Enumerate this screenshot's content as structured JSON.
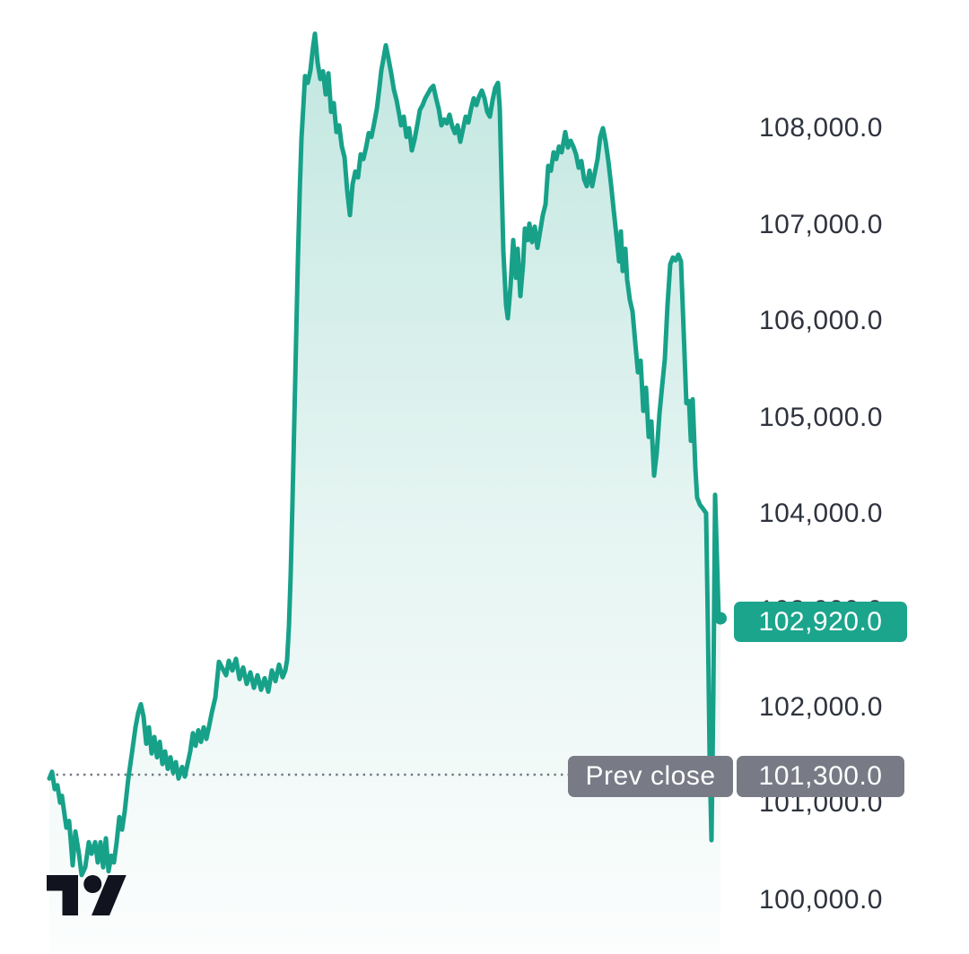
{
  "colors": {
    "background": "#ffffff",
    "line": "#17A189",
    "area_top": "#17A189",
    "last_price_badge": "#1BA58C",
    "prev_close_badge": "#787B86",
    "axis_text": "#2e333e",
    "prev_close_dots": "#5d6069",
    "logo": "#11141f"
  },
  "watermark": {
    "name": "tradingview-logo"
  },
  "chart_data": {
    "type": "area",
    "title": "",
    "xlabel": "",
    "ylabel": "",
    "grid": false,
    "legend": false,
    "x_axis_visible": false,
    "y_axis_side": "right",
    "y_axis": {
      "min": 99441,
      "max": 109329,
      "ticks": [
        {
          "value": 108000,
          "label": "108,000.0"
        },
        {
          "value": 107000,
          "label": "107,000.0"
        },
        {
          "value": 106000,
          "label": "106,000.0"
        },
        {
          "value": 105000,
          "label": "105,000.0"
        },
        {
          "value": 104000,
          "label": "104,000.0"
        },
        {
          "value": 103000,
          "label": "103,000.0"
        },
        {
          "value": 102000,
          "label": "102,000.0"
        },
        {
          "value": 101000,
          "label": "101,000.0"
        },
        {
          "value": 100000,
          "label": "100,000.0"
        }
      ]
    },
    "last_price": {
      "value": 102920,
      "label": "102,920.0"
    },
    "prev_close": {
      "value": 101300,
      "label": "101,300.0",
      "tag": "Prev close"
    },
    "series": [
      {
        "name": "price",
        "points_format": [
          "x_px",
          "price"
        ],
        "points": [
          [
            55,
            101260
          ],
          [
            58,
            101330
          ],
          [
            61,
            101150
          ],
          [
            64,
            101190
          ],
          [
            67,
            101010
          ],
          [
            69,
            101080
          ],
          [
            72,
            100880
          ],
          [
            74,
            100750
          ],
          [
            77,
            100820
          ],
          [
            79,
            100600
          ],
          [
            81,
            100360
          ],
          [
            84,
            100710
          ],
          [
            88,
            100480
          ],
          [
            91,
            100260
          ],
          [
            95,
            100340
          ],
          [
            99,
            100600
          ],
          [
            102,
            100480
          ],
          [
            106,
            100600
          ],
          [
            109,
            100390
          ],
          [
            112,
            100600
          ],
          [
            115,
            100340
          ],
          [
            118,
            100640
          ],
          [
            121,
            100300
          ],
          [
            124,
            100460
          ],
          [
            127,
            100390
          ],
          [
            130,
            100600
          ],
          [
            133,
            100860
          ],
          [
            136,
            100730
          ],
          [
            139,
            100920
          ],
          [
            143,
            101260
          ],
          [
            147,
            101520
          ],
          [
            151,
            101790
          ],
          [
            154,
            101940
          ],
          [
            157,
            102030
          ],
          [
            160,
            101900
          ],
          [
            163,
            101620
          ],
          [
            166,
            101790
          ],
          [
            169,
            101520
          ],
          [
            172,
            101690
          ],
          [
            175,
            101480
          ],
          [
            178,
            101640
          ],
          [
            181,
            101410
          ],
          [
            184,
            101540
          ],
          [
            187,
            101360
          ],
          [
            190,
            101480
          ],
          [
            193,
            101320
          ],
          [
            196,
            101430
          ],
          [
            199,
            101260
          ],
          [
            203,
            101380
          ],
          [
            206,
            101280
          ],
          [
            209,
            101410
          ],
          [
            212,
            101540
          ],
          [
            215,
            101730
          ],
          [
            218,
            101600
          ],
          [
            221,
            101760
          ],
          [
            224,
            101640
          ],
          [
            227,
            101790
          ],
          [
            230,
            101670
          ],
          [
            233,
            101800
          ],
          [
            236,
            101940
          ],
          [
            240,
            102100
          ],
          [
            244,
            102470
          ],
          [
            248,
            102400
          ],
          [
            252,
            102330
          ],
          [
            255,
            102480
          ],
          [
            259,
            102380
          ],
          [
            263,
            102500
          ],
          [
            267,
            102290
          ],
          [
            271,
            102410
          ],
          [
            275,
            102240
          ],
          [
            279,
            102360
          ],
          [
            283,
            102200
          ],
          [
            287,
            102330
          ],
          [
            291,
            102180
          ],
          [
            295,
            102300
          ],
          [
            299,
            102160
          ],
          [
            303,
            102380
          ],
          [
            307,
            102270
          ],
          [
            311,
            102440
          ],
          [
            315,
            102310
          ],
          [
            318,
            102380
          ],
          [
            320,
            102490
          ],
          [
            322,
            102830
          ],
          [
            324,
            103380
          ],
          [
            326,
            104130
          ],
          [
            328,
            104960
          ],
          [
            330,
            105800
          ],
          [
            332,
            106630
          ],
          [
            334,
            107330
          ],
          [
            336,
            107890
          ],
          [
            338,
            108210
          ],
          [
            340,
            108540
          ],
          [
            343,
            108470
          ],
          [
            346,
            108600
          ],
          [
            349,
            108850
          ],
          [
            351,
            108980
          ],
          [
            354,
            108680
          ],
          [
            357,
            108510
          ],
          [
            360,
            108590
          ],
          [
            363,
            108350
          ],
          [
            366,
            108570
          ],
          [
            369,
            108170
          ],
          [
            372,
            108260
          ],
          [
            375,
            107960
          ],
          [
            378,
            108030
          ],
          [
            381,
            107810
          ],
          [
            384,
            107700
          ],
          [
            387,
            107350
          ],
          [
            390,
            107100
          ],
          [
            393,
            107420
          ],
          [
            396,
            107550
          ],
          [
            399,
            107490
          ],
          [
            402,
            107730
          ],
          [
            405,
            107680
          ],
          [
            408,
            107800
          ],
          [
            411,
            107950
          ],
          [
            414,
            107910
          ],
          [
            417,
            108050
          ],
          [
            420,
            108200
          ],
          [
            423,
            108430
          ],
          [
            425,
            108600
          ],
          [
            427,
            108700
          ],
          [
            430,
            108860
          ],
          [
            433,
            108720
          ],
          [
            436,
            108570
          ],
          [
            439,
            108400
          ],
          [
            442,
            108290
          ],
          [
            445,
            108140
          ],
          [
            447,
            108030
          ],
          [
            450,
            108120
          ],
          [
            453,
            107910
          ],
          [
            456,
            108000
          ],
          [
            459,
            107770
          ],
          [
            462,
            107880
          ],
          [
            465,
            108030
          ],
          [
            468,
            108190
          ],
          [
            471,
            108240
          ],
          [
            474,
            108310
          ],
          [
            477,
            108360
          ],
          [
            480,
            108410
          ],
          [
            483,
            108440
          ],
          [
            486,
            108310
          ],
          [
            489,
            108200
          ],
          [
            492,
            108030
          ],
          [
            495,
            108090
          ],
          [
            498,
            108050
          ],
          [
            501,
            108140
          ],
          [
            504,
            108020
          ],
          [
            507,
            107950
          ],
          [
            510,
            108030
          ],
          [
            513,
            107860
          ],
          [
            516,
            107990
          ],
          [
            519,
            108120
          ],
          [
            522,
            108060
          ],
          [
            525,
            108200
          ],
          [
            528,
            108310
          ],
          [
            531,
            108240
          ],
          [
            534,
            108330
          ],
          [
            537,
            108390
          ],
          [
            540,
            108310
          ],
          [
            543,
            108170
          ],
          [
            546,
            108120
          ],
          [
            549,
            108290
          ],
          [
            552,
            108420
          ],
          [
            555,
            108470
          ],
          [
            557,
            108210
          ],
          [
            559,
            107470
          ],
          [
            561,
            106730
          ],
          [
            564,
            106170
          ],
          [
            566,
            106030
          ],
          [
            569,
            106360
          ],
          [
            572,
            106840
          ],
          [
            575,
            106450
          ],
          [
            577,
            106750
          ],
          [
            580,
            106260
          ],
          [
            583,
            106590
          ],
          [
            585,
            106960
          ],
          [
            588,
            106840
          ],
          [
            590,
            107010
          ],
          [
            593,
            106820
          ],
          [
            596,
            106980
          ],
          [
            599,
            106760
          ],
          [
            602,
            106930
          ],
          [
            605,
            107100
          ],
          [
            608,
            107210
          ],
          [
            611,
            107610
          ],
          [
            614,
            107560
          ],
          [
            617,
            107750
          ],
          [
            620,
            107680
          ],
          [
            623,
            107810
          ],
          [
            626,
            107750
          ],
          [
            630,
            107960
          ],
          [
            633,
            107800
          ],
          [
            636,
            107870
          ],
          [
            639,
            107810
          ],
          [
            642,
            107730
          ],
          [
            645,
            107590
          ],
          [
            648,
            107660
          ],
          [
            651,
            107470
          ],
          [
            654,
            107400
          ],
          [
            657,
            107560
          ],
          [
            660,
            107400
          ],
          [
            663,
            107540
          ],
          [
            666,
            107680
          ],
          [
            669,
            107910
          ],
          [
            672,
            108000
          ],
          [
            675,
            107860
          ],
          [
            678,
            107660
          ],
          [
            681,
            107420
          ],
          [
            684,
            107150
          ],
          [
            687,
            106890
          ],
          [
            690,
            106620
          ],
          [
            692,
            106930
          ],
          [
            694,
            106520
          ],
          [
            697,
            106750
          ],
          [
            699,
            106430
          ],
          [
            702,
            106220
          ],
          [
            705,
            106100
          ],
          [
            708,
            105780
          ],
          [
            711,
            105470
          ],
          [
            714,
            105590
          ],
          [
            717,
            105070
          ],
          [
            720,
            105310
          ],
          [
            723,
            104800
          ],
          [
            726,
            104960
          ],
          [
            729,
            104400
          ],
          [
            732,
            104640
          ],
          [
            735,
            105040
          ],
          [
            738,
            105330
          ],
          [
            741,
            105610
          ],
          [
            744,
            106170
          ],
          [
            747,
            106590
          ],
          [
            750,
            106660
          ],
          [
            753,
            106630
          ],
          [
            756,
            106690
          ],
          [
            759,
            106620
          ],
          [
            762,
            105890
          ],
          [
            765,
            105150
          ],
          [
            768,
            105170
          ],
          [
            770,
            104760
          ],
          [
            772,
            105190
          ],
          [
            775,
            104480
          ],
          [
            777,
            104170
          ],
          [
            780,
            104100
          ],
          [
            784,
            104050
          ],
          [
            787,
            104010
          ],
          [
            789,
            102830
          ],
          [
            791,
            101430
          ],
          [
            793,
            100620
          ],
          [
            795,
            102080
          ],
          [
            797,
            104200
          ],
          [
            799,
            103570
          ],
          [
            801,
            102920
          ],
          [
            803,
            102920
          ]
        ]
      }
    ]
  }
}
